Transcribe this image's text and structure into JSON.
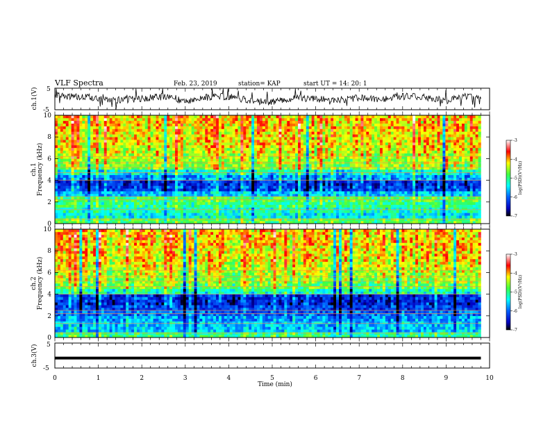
{
  "header": {
    "title": "VLF Spectra",
    "date": "Feb. 23, 2019",
    "station": "station= KAP",
    "start": "start  UT =   14: 20: 1"
  },
  "chart_data": [
    {
      "type": "line",
      "name": "ch1-voltage",
      "ylabel": "ch.1(V)",
      "ylim": [
        -5,
        5
      ],
      "yticks": [
        "5",
        "-5"
      ],
      "xlim": [
        0,
        10
      ],
      "description_values": {
        "x": [
          0,
          0.5,
          1,
          1.5,
          2,
          2.5,
          3,
          3.5,
          4,
          4.5,
          5,
          5.5,
          6,
          6.5,
          7,
          7.5,
          8,
          8.5,
          9,
          9.5,
          9.8
        ],
        "y": [
          1.5,
          1.0,
          0.5,
          -0.5,
          0.2,
          1.0,
          -1.0,
          0.8,
          1.2,
          -0.8,
          -1.5,
          0.5,
          0.0,
          -0.5,
          0.5,
          0.0,
          1.2,
          1.0,
          -0.8,
          1.5,
          0.2
        ]
      }
    },
    {
      "type": "heatmap",
      "name": "ch1-spectrogram",
      "ylabel": "ch.1\nFrequency (kHz)",
      "ylabel_line1": "ch.1",
      "ylabel_line2": "Frequency (kHz)",
      "ylim": [
        0,
        10
      ],
      "yticks": [
        "0",
        "2",
        "4",
        "6",
        "8",
        "10"
      ],
      "xlim": [
        0,
        10
      ],
      "data_xmax": 9.8,
      "colorbar": {
        "label": "log(PSD)(V²/Hz)",
        "ticks": [
          "-3",
          "-4",
          "-5",
          "-6",
          "-7"
        ],
        "range": [
          -7,
          -3
        ]
      },
      "freq_bands_kHz": [
        0,
        0.5,
        1,
        1.5,
        2,
        2.5,
        3,
        3.5,
        4,
        4.5,
        5,
        5.5,
        6,
        6.5,
        7,
        7.5,
        8,
        8.5,
        9,
        9.5,
        10
      ],
      "band_mean_logpsd": [
        -4.8,
        -5.4,
        -5.2,
        -5.0,
        -4.9,
        -5.6,
        -6.2,
        -6.3,
        -5.8,
        -5.3,
        -4.6,
        -4.5,
        -4.4,
        -4.3,
        -4.2,
        -4.2,
        -4.2,
        -4.1,
        -4.1,
        -4.1
      ]
    },
    {
      "type": "heatmap",
      "name": "ch2-spectrogram",
      "ylabel": "ch.2\nFrequency (kHz)",
      "ylabel_line1": "ch.2",
      "ylabel_line2": "Frequency (kHz)",
      "ylim": [
        0,
        10
      ],
      "yticks": [
        "0",
        "2",
        "4",
        "6",
        "8",
        "10"
      ],
      "xlim": [
        0,
        10
      ],
      "data_xmax": 9.8,
      "colorbar": {
        "label": "log(PSD)(V²/Hz)",
        "ticks": [
          "-3",
          "-4",
          "-5",
          "-6",
          "-7"
        ],
        "range": [
          -7,
          -3
        ]
      },
      "freq_bands_kHz": [
        0,
        0.5,
        1,
        1.5,
        2,
        2.5,
        3,
        3.5,
        4,
        4.5,
        5,
        5.5,
        6,
        6.5,
        7,
        7.5,
        8,
        8.5,
        9,
        9.5,
        10
      ],
      "band_mean_logpsd": [
        -5.0,
        -5.6,
        -5.6,
        -5.8,
        -6.0,
        -6.2,
        -6.4,
        -6.3,
        -5.2,
        -4.8,
        -4.6,
        -4.5,
        -4.4,
        -4.3,
        -4.2,
        -4.2,
        -4.2,
        -4.1,
        -4.1,
        -4.1
      ]
    },
    {
      "type": "line",
      "name": "ch3-voltage",
      "ylabel": "ch.3(V)",
      "ylim": [
        -5,
        5
      ],
      "yticks": [
        "5",
        "-5"
      ],
      "xlim": [
        0,
        10
      ],
      "x": [
        0,
        9.8
      ],
      "y": [
        -1,
        -1
      ]
    }
  ],
  "xaxis": {
    "label": "Time (min)",
    "ticks": [
      "0",
      "1",
      "2",
      "3",
      "4",
      "5",
      "6",
      "7",
      "8",
      "9",
      "10"
    ]
  },
  "colormap": [
    "#000080",
    "#0000ff",
    "#0080ff",
    "#00ffff",
    "#40ff80",
    "#80ff00",
    "#ffff00",
    "#ff8000",
    "#ff0000",
    "#ffffff"
  ]
}
